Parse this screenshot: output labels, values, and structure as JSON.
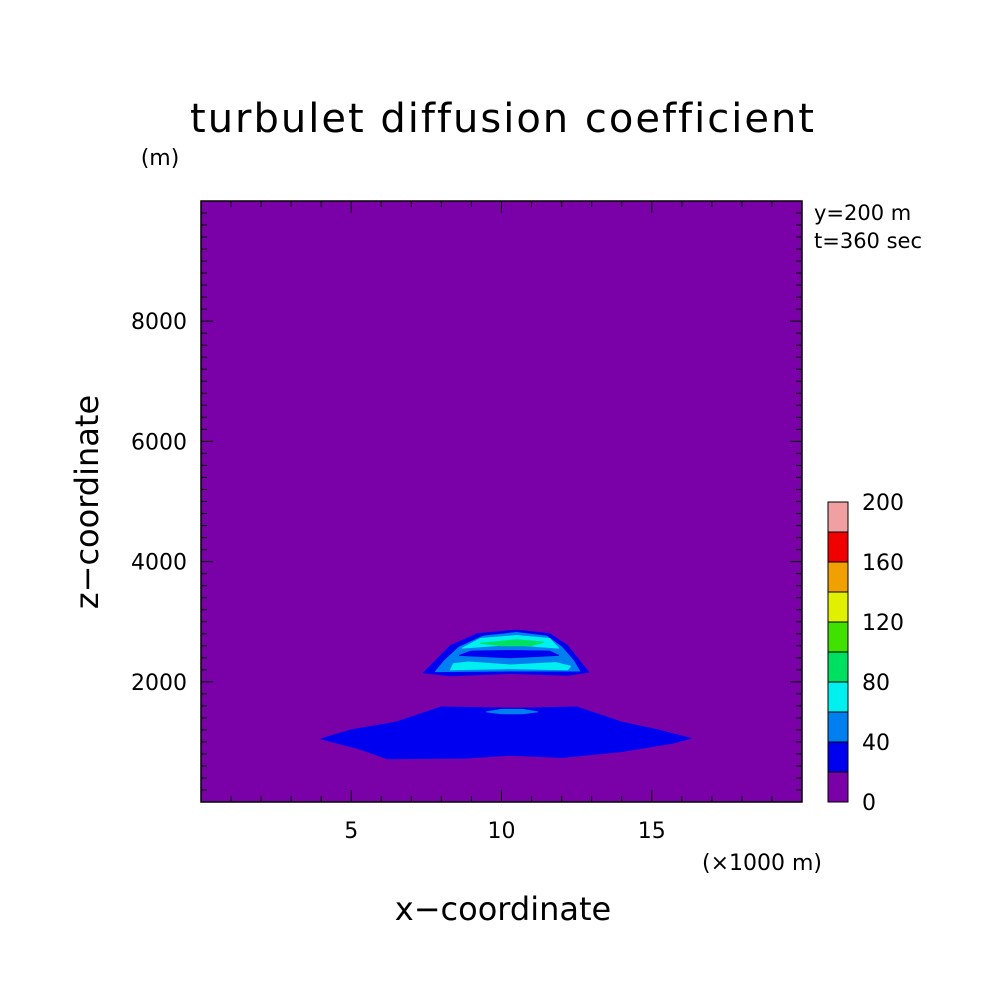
{
  "chart_data": {
    "type": "heatmap",
    "title": "turbulet diffusion coefficient",
    "xlabel": "x−coordinate",
    "ylabel": "z−coordinate",
    "x_unit": "(×1000 m)",
    "y_unit": "(m)",
    "annotations": [
      "y=200 m",
      "t=360 sec"
    ],
    "xlim": [
      0,
      20
    ],
    "ylim": [
      0,
      10000
    ],
    "x_ticks": [
      5,
      10,
      15
    ],
    "x_tick_labels": [
      "5",
      "10",
      "15"
    ],
    "y_ticks": [
      2000,
      4000,
      6000,
      8000
    ],
    "y_tick_labels": [
      "2000",
      "4000",
      "6000",
      "8000"
    ],
    "colorbar": {
      "levels": [
        0,
        20,
        40,
        60,
        80,
        100,
        120,
        140,
        160,
        180,
        200
      ],
      "tick_labels": [
        "0",
        "40",
        "80",
        "120",
        "160",
        "200"
      ],
      "colors": [
        "#7a00a8",
        "#0000f0",
        "#0080f0",
        "#00f0f0",
        "#00e060",
        "#40e000",
        "#e0f000",
        "#f0a000",
        "#f00000",
        "#f0a0a0"
      ]
    },
    "background_color": "#7a00a8",
    "regions": [
      {
        "level": "20-40",
        "color": "#0000f0",
        "points": [
          [
            4.0,
            1050
          ],
          [
            5.0,
            1200
          ],
          [
            6.5,
            1330
          ],
          [
            8.0,
            1580
          ],
          [
            10.5,
            1560
          ],
          [
            12.5,
            1580
          ],
          [
            14.0,
            1330
          ],
          [
            15.2,
            1200
          ],
          [
            16.3,
            1060
          ],
          [
            15.7,
            980
          ],
          [
            14.0,
            840
          ],
          [
            12.0,
            740
          ],
          [
            10.3,
            780
          ],
          [
            8.8,
            730
          ],
          [
            6.2,
            720
          ],
          [
            5.3,
            880
          ]
        ]
      },
      {
        "level": "40-60",
        "color": "#0080f0",
        "points": [
          [
            9.5,
            1500
          ],
          [
            10.0,
            1540
          ],
          [
            10.7,
            1540
          ],
          [
            11.2,
            1500
          ],
          [
            10.7,
            1470
          ],
          [
            10.0,
            1470
          ]
        ]
      },
      {
        "level": "20-40",
        "color": "#0000f0",
        "points": [
          [
            7.4,
            2150
          ],
          [
            7.8,
            2350
          ],
          [
            8.3,
            2600
          ],
          [
            9.2,
            2800
          ],
          [
            10.5,
            2860
          ],
          [
            11.6,
            2800
          ],
          [
            12.2,
            2600
          ],
          [
            12.6,
            2350
          ],
          [
            12.9,
            2160
          ],
          [
            12.2,
            2110
          ],
          [
            10.3,
            2140
          ],
          [
            8.3,
            2100
          ]
        ]
      },
      {
        "level": "40-60",
        "color": "#0080f0",
        "points": [
          [
            7.8,
            2170
          ],
          [
            8.1,
            2350
          ],
          [
            8.6,
            2580
          ],
          [
            9.4,
            2760
          ],
          [
            10.5,
            2820
          ],
          [
            11.5,
            2760
          ],
          [
            12.0,
            2580
          ],
          [
            12.4,
            2350
          ],
          [
            12.6,
            2180
          ],
          [
            10.3,
            2180
          ]
        ]
      },
      {
        "level": "60-80",
        "color": "#00f0f0",
        "points": [
          [
            8.3,
            2200
          ],
          [
            8.4,
            2300
          ],
          [
            8.9,
            2330
          ],
          [
            10.3,
            2280
          ],
          [
            11.8,
            2320
          ],
          [
            12.3,
            2260
          ],
          [
            12.2,
            2200
          ],
          [
            10.3,
            2220
          ]
        ]
      },
      {
        "level": "60-80",
        "color": "#00f0f0",
        "points": [
          [
            8.7,
            2560
          ],
          [
            9.3,
            2720
          ],
          [
            10.5,
            2770
          ],
          [
            11.6,
            2720
          ],
          [
            11.9,
            2560
          ],
          [
            10.3,
            2620
          ]
        ]
      },
      {
        "level": "80-100",
        "color": "#00e060",
        "points": [
          [
            9.3,
            2640
          ],
          [
            10.5,
            2700
          ],
          [
            11.4,
            2660
          ],
          [
            11.0,
            2600
          ],
          [
            10.0,
            2600
          ]
        ]
      },
      {
        "level": "20-40",
        "color": "#0000f0",
        "points": [
          [
            8.6,
            2440
          ],
          [
            9.0,
            2510
          ],
          [
            10.3,
            2520
          ],
          [
            11.6,
            2510
          ],
          [
            11.9,
            2440
          ],
          [
            10.3,
            2400
          ]
        ]
      }
    ]
  }
}
